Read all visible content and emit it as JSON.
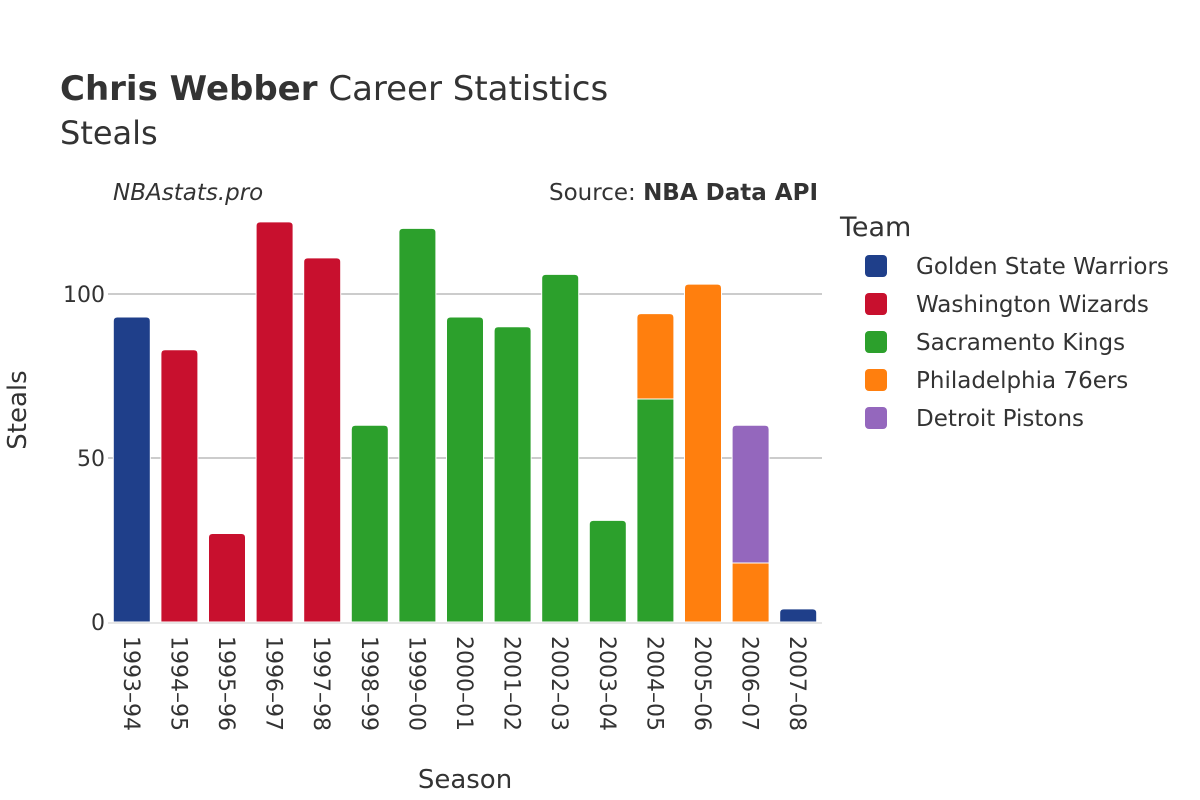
{
  "chart_data": {
    "type": "bar",
    "stacked": true,
    "title_bold": "Chris Webber",
    "title_rest": " Career Statistics",
    "subtitle": "Steals",
    "watermark": "NBAstats.pro",
    "source_label": "Source: ",
    "source_name": "NBA Data API",
    "xlabel": "Season",
    "ylabel": "Steals",
    "ylim": [
      0,
      125
    ],
    "yticks": [
      0,
      50,
      100
    ],
    "grid": true,
    "legend_title": "Team",
    "legend_position": "right",
    "categories": [
      "1993–94",
      "1994–95",
      "1995–96",
      "1996–97",
      "1997–98",
      "1998–99",
      "1999–00",
      "2000–01",
      "2001–02",
      "2002–03",
      "2003–04",
      "2004–05",
      "2005–06",
      "2006–07",
      "2007–08"
    ],
    "series": [
      {
        "name": "Golden State Warriors",
        "color": "#1f3f8a",
        "values": [
          93,
          0,
          0,
          0,
          0,
          0,
          0,
          0,
          0,
          0,
          0,
          0,
          0,
          0,
          4
        ]
      },
      {
        "name": "Washington Wizards",
        "color": "#c8102e",
        "values": [
          0,
          83,
          27,
          122,
          111,
          0,
          0,
          0,
          0,
          0,
          0,
          0,
          0,
          0,
          0
        ]
      },
      {
        "name": "Sacramento Kings",
        "color": "#2ca02c",
        "values": [
          0,
          0,
          0,
          0,
          0,
          60,
          120,
          93,
          90,
          106,
          31,
          68,
          0,
          0,
          0
        ]
      },
      {
        "name": "Philadelphia 76ers",
        "color": "#ff7f0e",
        "values": [
          0,
          0,
          0,
          0,
          0,
          0,
          0,
          0,
          0,
          0,
          0,
          26,
          103,
          18,
          0
        ]
      },
      {
        "name": "Detroit Pistons",
        "color": "#9467bd",
        "values": [
          0,
          0,
          0,
          0,
          0,
          0,
          0,
          0,
          0,
          0,
          0,
          0,
          0,
          42,
          0
        ]
      }
    ]
  }
}
